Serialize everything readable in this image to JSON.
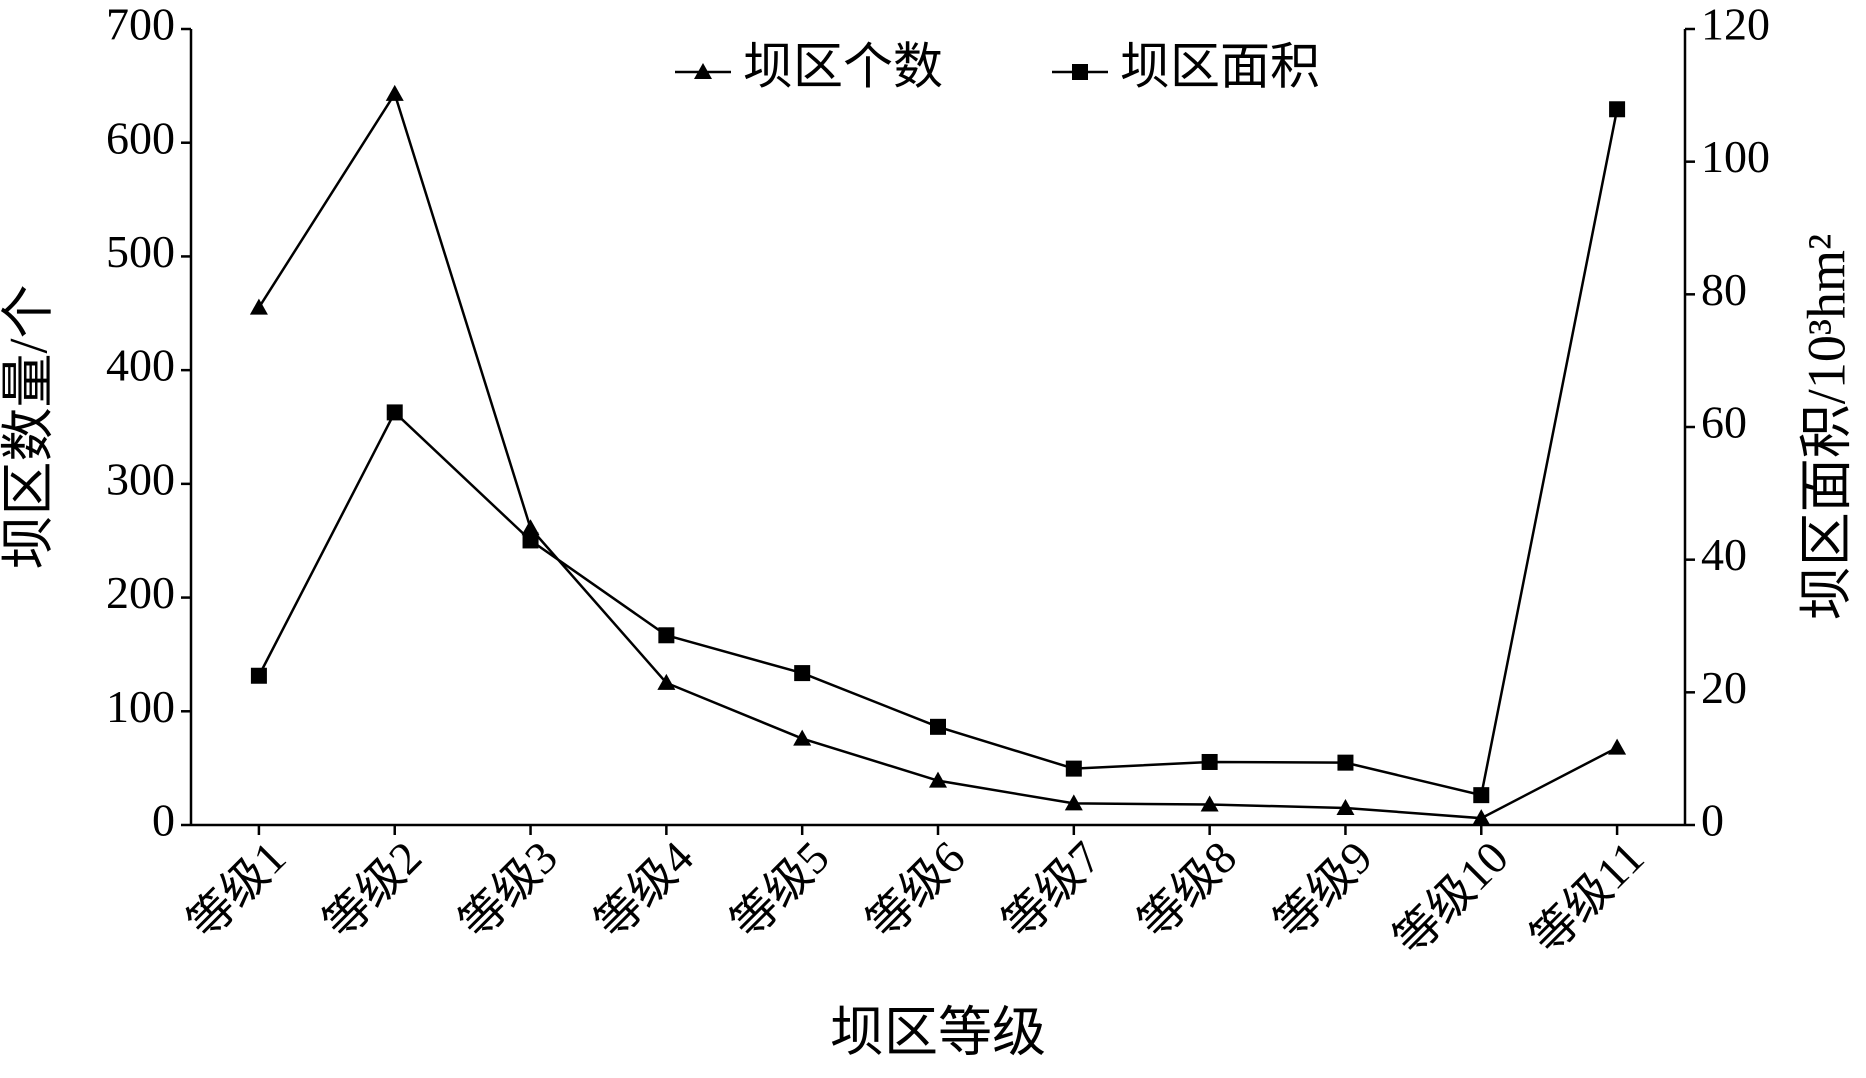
{
  "chart_data": {
    "type": "line",
    "xlabel": "坝区等级",
    "ylabel": "坝区数量/个",
    "y2label": "坝区面积/10³hm²",
    "categories": [
      "等级1",
      "等级2",
      "等级3",
      "等级4",
      "等级5",
      "等级6",
      "等级7",
      "等级8",
      "等级9",
      "等级10",
      "等级11"
    ],
    "series": [
      {
        "name": "坝区个数",
        "color": "#000000",
        "marker": "triangle",
        "values": [
          455,
          643,
          261,
          125,
          76,
          39,
          19,
          18,
          15,
          6,
          68
        ]
      },
      {
        "name": "坝区面积",
        "color": "#000000",
        "marker": "square",
        "axis": "y2",
        "values": [
          22.5,
          62.2,
          42.9,
          28.6,
          22.9,
          14.8,
          8.5,
          9.5,
          9.4,
          4.5,
          107.9
        ]
      }
    ],
    "ylim": [
      0,
      700
    ],
    "yticks": [
      0,
      100,
      200,
      300,
      400,
      500,
      600,
      700
    ],
    "y2lim": [
      0,
      120
    ],
    "y2ticks": [
      0,
      20,
      40,
      60,
      80,
      100,
      120
    ],
    "grid": false,
    "legend": "top"
  }
}
